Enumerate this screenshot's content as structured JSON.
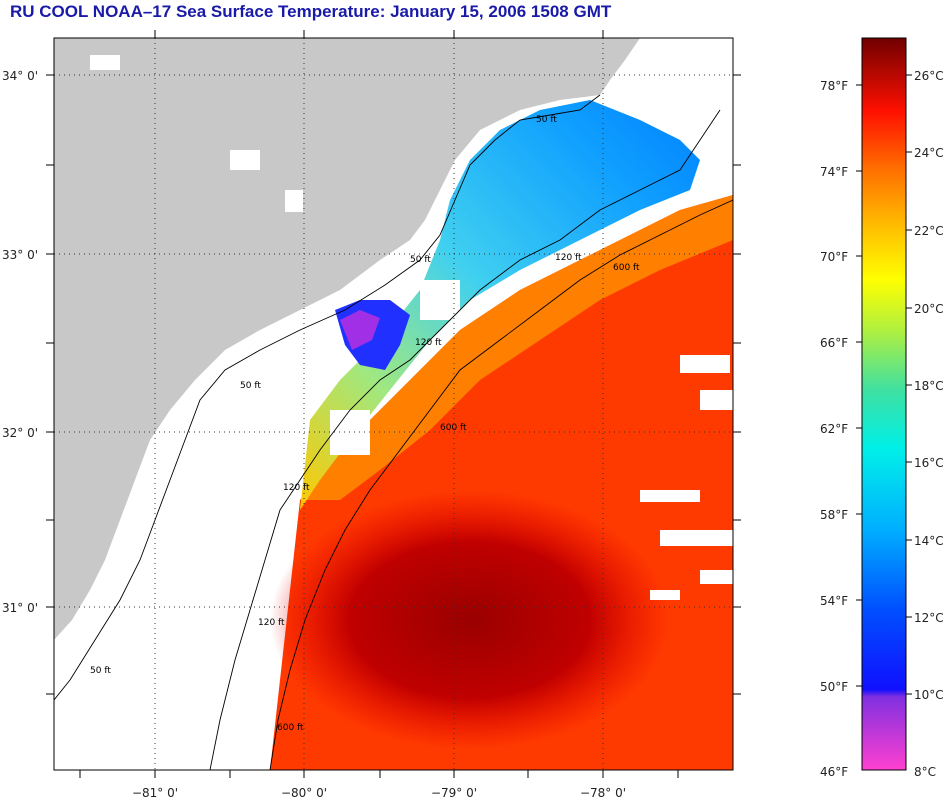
{
  "title": "RU COOL  NOAA–17  Sea Surface Temperature:  January 15, 2006 1508 GMT",
  "colors": {
    "land": "#c8c8c8",
    "title": "#1a1aa8",
    "cloud": "#ffffff"
  },
  "latitude_labels": [
    "34° 0'",
    "33° 0'",
    "32° 0'",
    "31° 0'"
  ],
  "longitude_labels": [
    "−81° 0'",
    "−80° 0'",
    "−79° 0'",
    "−78° 0'"
  ],
  "contour_labels": [
    "50 ft",
    "120 ft",
    "600 ft",
    "50 ft",
    "120 ft",
    "600 ft",
    "50 ft",
    "120 ft",
    "600 ft",
    "120 ft",
    "50 ft"
  ],
  "colorbar": {
    "fahrenheit": [
      "78°F",
      "74°F",
      "70°F",
      "66°F",
      "62°F",
      "58°F",
      "54°F",
      "50°F",
      "46°F"
    ],
    "celsius": [
      "26°C",
      "24°C",
      "22°C",
      "20°C",
      "18°C",
      "16°C",
      "14°C",
      "12°C",
      "10°C",
      "8°C"
    ]
  }
}
